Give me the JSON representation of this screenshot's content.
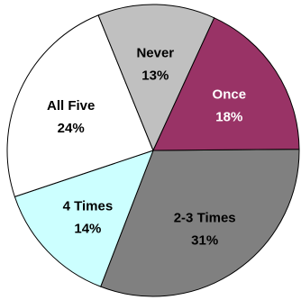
{
  "chart_data": {
    "type": "pie",
    "slices": [
      {
        "label": "2-3 Times",
        "percent_label": "31%",
        "value": 31,
        "color": "#808080",
        "text_color": "#000000"
      },
      {
        "label": "4 Times",
        "percent_label": "14%",
        "value": 14,
        "color": "#ccffff",
        "text_color": "#000000"
      },
      {
        "label": "All Five",
        "percent_label": "24%",
        "value": 24,
        "color": "#ffffff",
        "text_color": "#000000"
      },
      {
        "label": "Never",
        "percent_label": "13%",
        "value": 13,
        "color": "#c0c0c0",
        "text_color": "#000000"
      },
      {
        "label": "Once",
        "percent_label": "18%",
        "value": 18,
        "color": "#993366",
        "text_color": "#ffffff"
      }
    ],
    "title": "",
    "legend": "none",
    "labels_inside": true
  }
}
